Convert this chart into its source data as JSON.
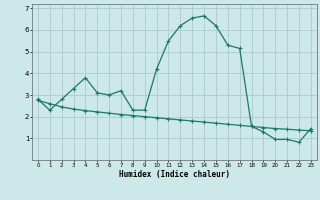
{
  "xlabel": "Humidex (Indice chaleur)",
  "background_color": "#cce8e8",
  "grid_color": "#aacccc",
  "line_color": "#1a7a6a",
  "xlim": [
    -0.5,
    23.5
  ],
  "ylim": [
    0,
    7.2
  ],
  "xticks": [
    0,
    1,
    2,
    3,
    4,
    5,
    6,
    7,
    8,
    9,
    10,
    11,
    12,
    13,
    14,
    15,
    16,
    17,
    18,
    19,
    20,
    21,
    22,
    23
  ],
  "yticks": [
    1,
    2,
    3,
    4,
    5,
    6,
    7
  ],
  "series1_x": [
    0,
    1,
    2,
    3,
    4,
    5,
    6,
    7,
    8,
    9,
    10,
    11,
    12,
    13,
    14,
    15,
    16,
    17,
    18,
    19,
    20,
    21,
    22,
    23
  ],
  "series1_y": [
    2.8,
    2.3,
    2.8,
    3.3,
    3.8,
    3.1,
    3.0,
    3.2,
    2.3,
    2.3,
    4.2,
    5.5,
    6.2,
    6.55,
    6.65,
    6.2,
    5.3,
    5.15,
    1.55,
    1.3,
    0.95,
    0.95,
    0.82,
    1.45
  ],
  "series2_x": [
    0,
    1,
    2,
    3,
    4,
    5,
    6,
    7,
    8,
    9,
    10,
    11,
    12,
    13,
    14,
    15,
    16,
    17,
    18,
    19,
    20,
    21,
    22,
    23
  ],
  "series2_y": [
    2.75,
    2.6,
    2.45,
    2.35,
    2.28,
    2.22,
    2.16,
    2.1,
    2.05,
    2.0,
    1.95,
    1.9,
    1.85,
    1.8,
    1.75,
    1.7,
    1.65,
    1.6,
    1.55,
    1.5,
    1.45,
    1.42,
    1.38,
    1.35
  ]
}
